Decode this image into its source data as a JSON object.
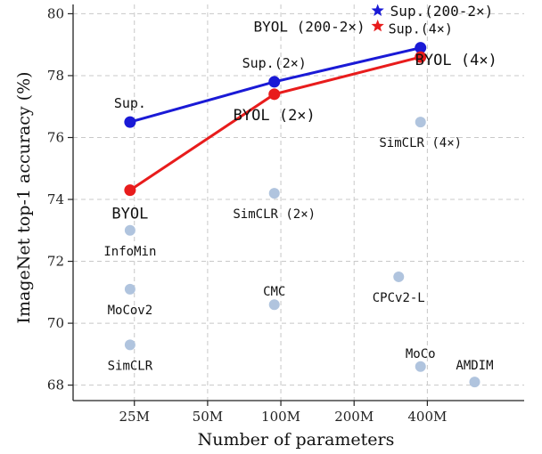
{
  "chart_data": {
    "type": "scatter",
    "title": "",
    "xlabel": "Number of parameters",
    "ylabel": "ImageNet top-1 accuracy (%)",
    "x_scale": "log",
    "x_ticks": [
      {
        "value": 25,
        "label": "25M"
      },
      {
        "value": 50,
        "label": "50M"
      },
      {
        "value": 100,
        "label": "100M"
      },
      {
        "value": 200,
        "label": "200M"
      },
      {
        "value": 400,
        "label": "400M"
      }
    ],
    "xlim": [
      14,
      1000
    ],
    "ylim": [
      67.5,
      80.3
    ],
    "y_ticks": [
      68,
      70,
      72,
      74,
      76,
      78,
      80
    ],
    "grid": true,
    "points": [
      {
        "label": "InfoMin",
        "x": 24,
        "y": 73.0
      },
      {
        "label": "MoCov2",
        "x": 24,
        "y": 71.1
      },
      {
        "label": "SimCLR",
        "x": 24,
        "y": 69.3
      },
      {
        "label": "SimCLR (2×)",
        "x": 94,
        "y": 74.2
      },
      {
        "label": "CMC",
        "x": 94,
        "y": 70.6
      },
      {
        "label": "SimCLR (4×)",
        "x": 375,
        "y": 76.5
      },
      {
        "label": "CPCv2-L",
        "x": 305,
        "y": 71.5
      },
      {
        "label": "MoCo",
        "x": 375,
        "y": 68.6
      },
      {
        "label": "AMDIM",
        "x": 626,
        "y": 68.1
      }
    ],
    "series": [
      {
        "name": "Sup.",
        "color": "#1a1ad6",
        "points": [
          {
            "x": 24,
            "y": 76.5,
            "label": "Sup."
          },
          {
            "x": 94,
            "y": 77.8,
            "label": "Sup.(2×)"
          },
          {
            "x": 375,
            "y": 78.9,
            "label": "Sup.(4×)"
          }
        ]
      },
      {
        "name": "BYOL",
        "color": "#e81c1c",
        "points": [
          {
            "x": 24,
            "y": 74.3,
            "label": "BYOL"
          },
          {
            "x": 94,
            "y": 77.4,
            "label": "BYOL (2×)"
          },
          {
            "x": 375,
            "y": 78.6,
            "label": "BYOL (4×)"
          }
        ]
      }
    ],
    "stars": [
      {
        "label": "Sup.(200-2×)",
        "x": 250,
        "y": 80.1,
        "color": "#1a1ad6"
      },
      {
        "label": "BYOL (200-2×)",
        "x": 250,
        "y": 79.6,
        "color": "#e81c1c"
      }
    ]
  }
}
